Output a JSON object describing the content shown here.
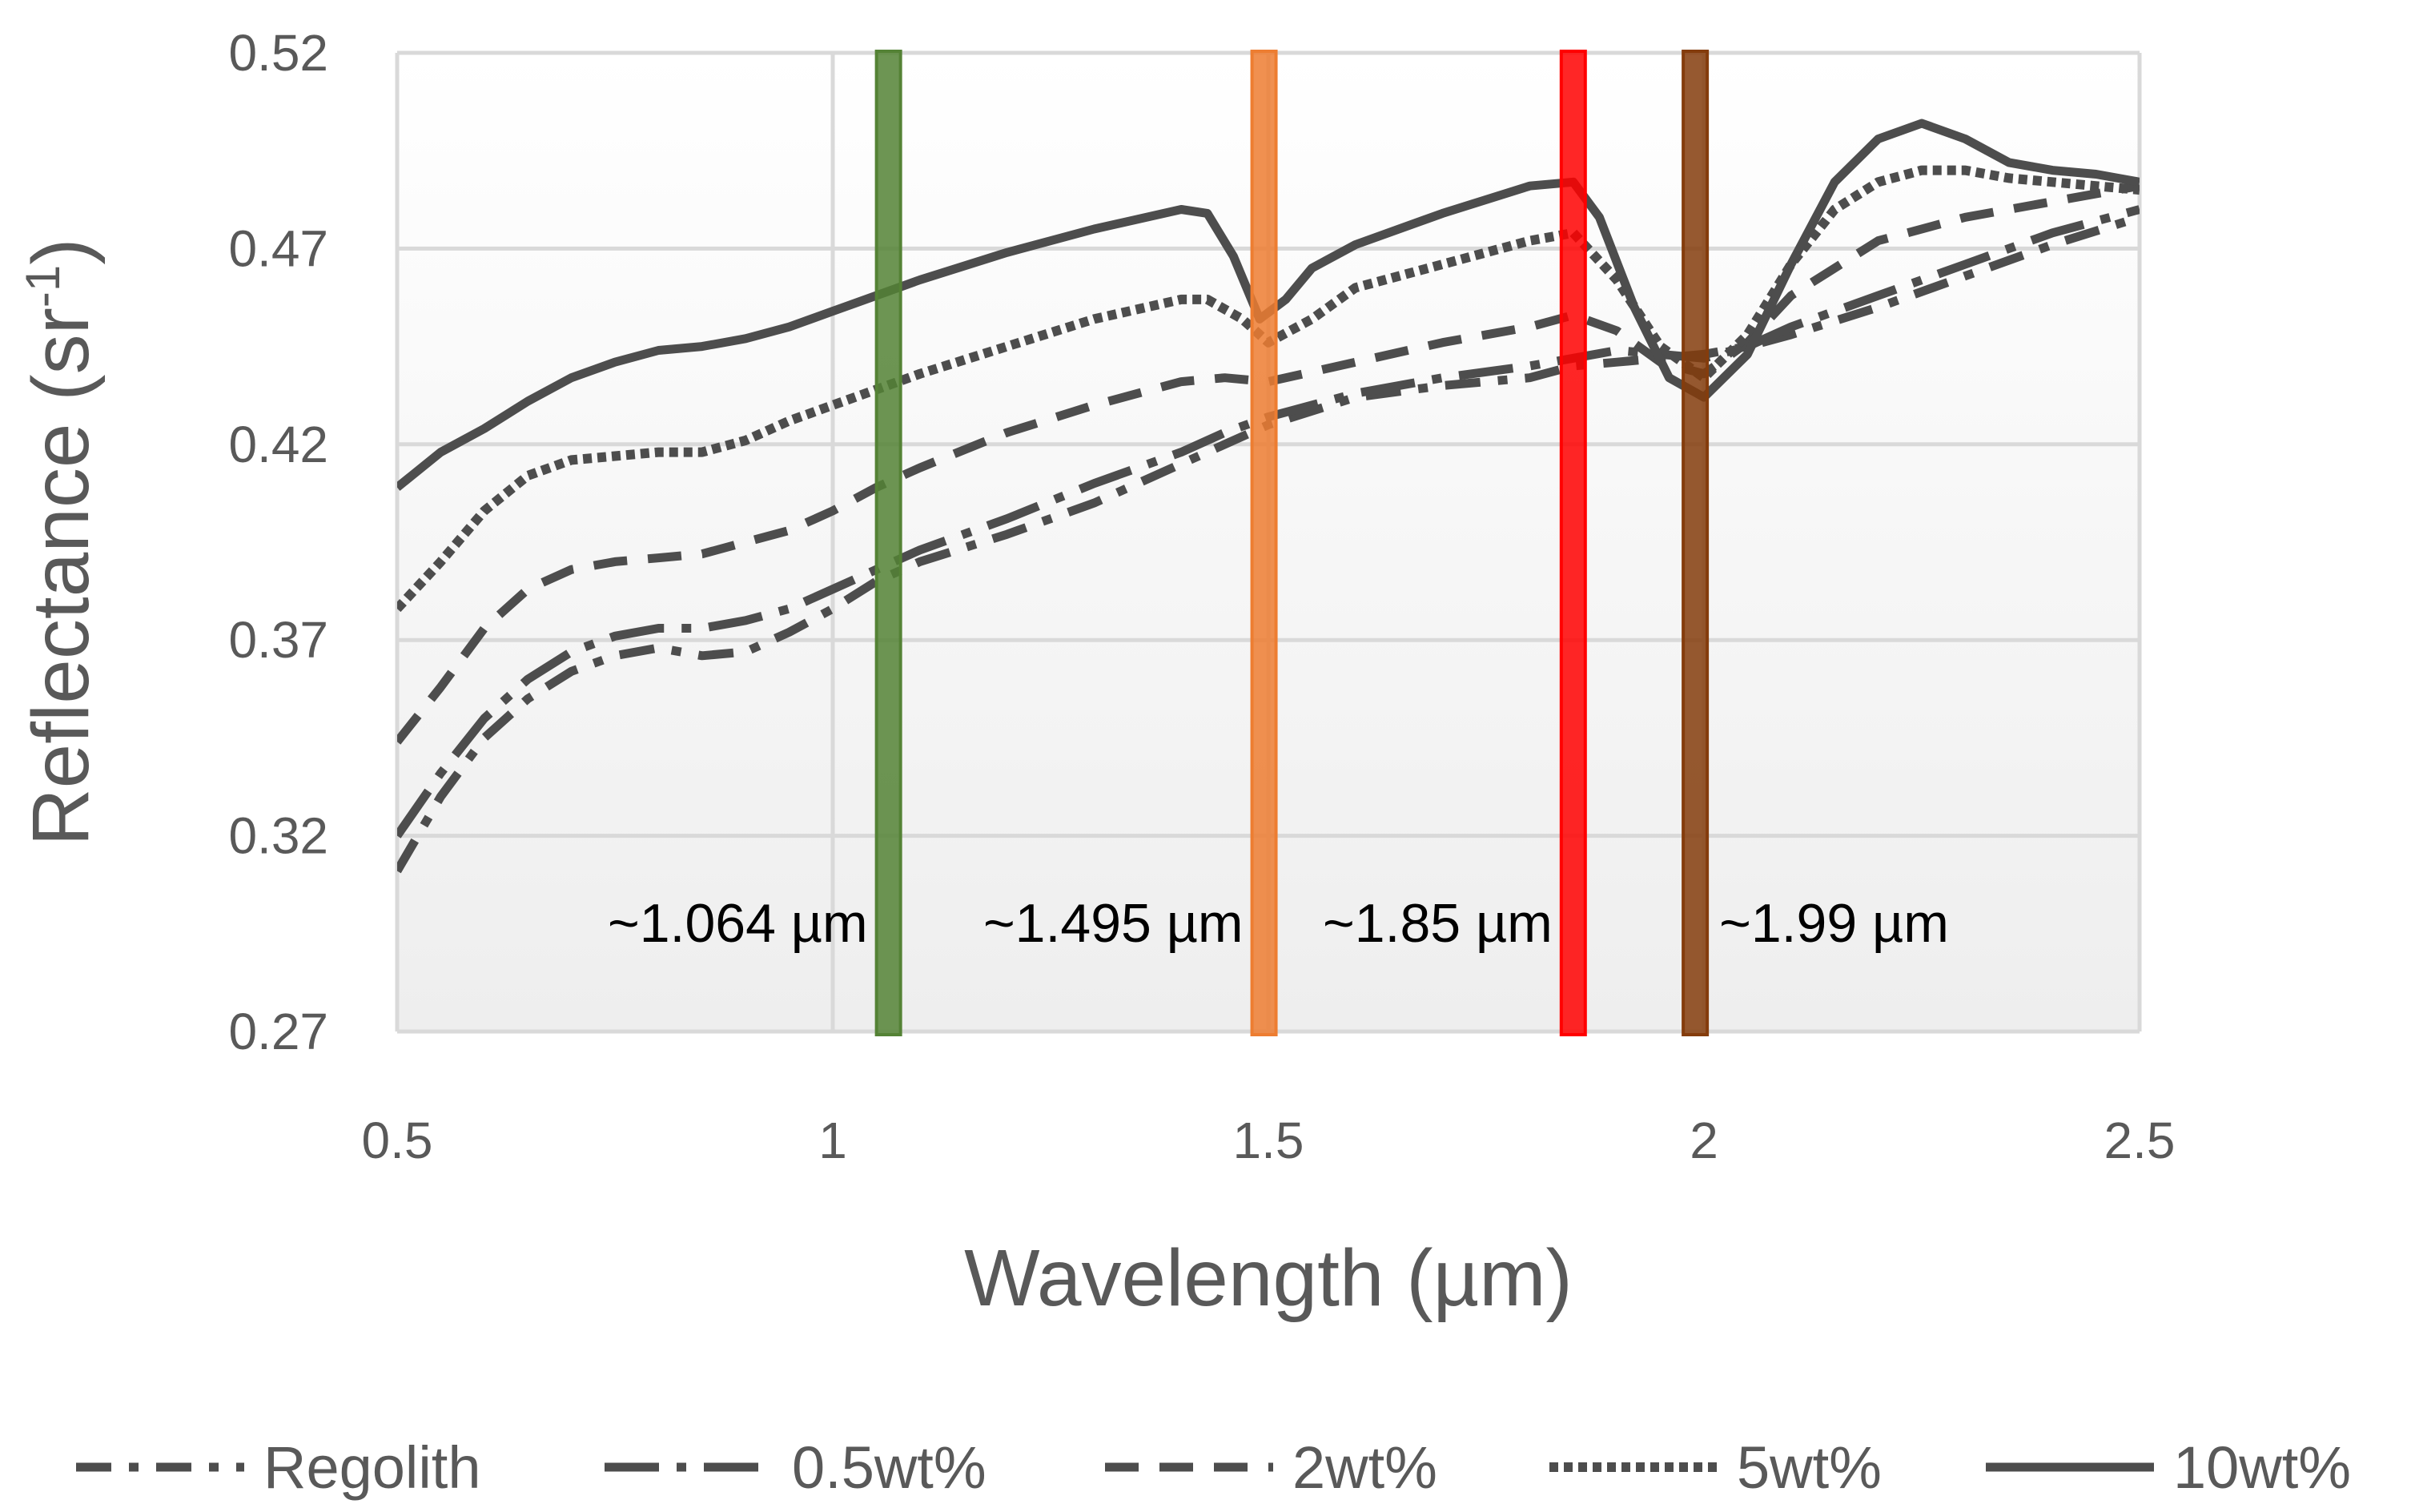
{
  "chart_data": {
    "type": "line",
    "title": "",
    "xlabel": "Wavelength (µm)",
    "ylabel_main": "Reflectance (sr",
    "ylabel_sup": "-1",
    "ylabel_close": ")",
    "xlim": [
      0.5,
      2.5
    ],
    "ylim": [
      0.27,
      0.52
    ],
    "xticks": [
      0.5,
      1,
      1.5,
      2,
      2.5
    ],
    "xtick_labels": [
      "0.5",
      "1",
      "1.5",
      "2",
      "2.5"
    ],
    "yticks": [
      0.27,
      0.32,
      0.37,
      0.42,
      0.47,
      0.52
    ],
    "ytick_labels": [
      "0.27",
      "0.32",
      "0.37",
      "0.42",
      "0.47",
      "0.52"
    ],
    "grid": true,
    "legend_position": "bottom",
    "line_color": "#4d4d4d",
    "bands": [
      {
        "x": 1.064,
        "label": "~1.064 µm",
        "color": "#548235",
        "text_side": "left"
      },
      {
        "x": 1.495,
        "label": "~1.495 µm",
        "color": "#ed7d31",
        "text_side": "left"
      },
      {
        "x": 1.85,
        "label": "~1.85 µm",
        "color": "#ff0000",
        "text_side": "left"
      },
      {
        "x": 1.99,
        "label": "~1.99 µm",
        "color": "#843c0c",
        "text_side": "right"
      }
    ],
    "series": [
      {
        "name": "Regolith",
        "dash": "dashdot",
        "x": [
          0.5,
          0.55,
          0.6,
          0.65,
          0.7,
          0.75,
          0.8,
          0.85,
          0.9,
          0.95,
          1.0,
          1.05,
          1.1,
          1.2,
          1.3,
          1.4,
          1.45,
          1.5,
          1.6,
          1.7,
          1.8,
          1.85,
          1.9,
          1.95,
          2.0,
          2.05,
          2.1,
          2.2,
          2.3,
          2.4,
          2.5
        ],
        "y": [
          0.311,
          0.33,
          0.345,
          0.355,
          0.362,
          0.366,
          0.368,
          0.366,
          0.367,
          0.372,
          0.378,
          0.385,
          0.39,
          0.397,
          0.405,
          0.415,
          0.42,
          0.425,
          0.432,
          0.435,
          0.437,
          0.44,
          0.441,
          0.442,
          0.443,
          0.445,
          0.448,
          0.455,
          0.463,
          0.471,
          0.478
        ]
      },
      {
        "name": "0.5wt%",
        "dash": "longdashdot",
        "x": [
          0.5,
          0.55,
          0.6,
          0.65,
          0.7,
          0.75,
          0.8,
          0.85,
          0.9,
          0.95,
          1.0,
          1.05,
          1.1,
          1.2,
          1.3,
          1.4,
          1.45,
          1.5,
          1.6,
          1.7,
          1.8,
          1.85,
          1.9,
          1.95,
          2.0,
          2.05,
          2.1,
          2.2,
          2.3,
          2.4,
          2.5
        ],
        "y": [
          0.32,
          0.336,
          0.35,
          0.36,
          0.367,
          0.371,
          0.373,
          0.373,
          0.375,
          0.378,
          0.383,
          0.388,
          0.393,
          0.401,
          0.41,
          0.418,
          0.423,
          0.427,
          0.433,
          0.437,
          0.44,
          0.442,
          0.444,
          0.443,
          0.442,
          0.445,
          0.45,
          0.458,
          0.466,
          0.474,
          0.48
        ]
      },
      {
        "name": "2wt%",
        "dash": "dash",
        "x": [
          0.5,
          0.55,
          0.6,
          0.65,
          0.7,
          0.75,
          0.8,
          0.85,
          0.9,
          0.95,
          1.0,
          1.05,
          1.1,
          1.2,
          1.3,
          1.4,
          1.45,
          1.5,
          1.6,
          1.7,
          1.8,
          1.85,
          1.9,
          1.95,
          2.0,
          2.05,
          2.1,
          2.2,
          2.3,
          2.4,
          2.5
        ],
        "y": [
          0.344,
          0.358,
          0.373,
          0.383,
          0.388,
          0.39,
          0.391,
          0.392,
          0.395,
          0.398,
          0.403,
          0.409,
          0.414,
          0.423,
          0.43,
          0.436,
          0.437,
          0.436,
          0.441,
          0.446,
          0.45,
          0.453,
          0.449,
          0.441,
          0.438,
          0.446,
          0.458,
          0.472,
          0.478,
          0.482,
          0.486
        ]
      },
      {
        "name": "5wt%",
        "dash": "dot",
        "x": [
          0.5,
          0.55,
          0.6,
          0.65,
          0.7,
          0.75,
          0.8,
          0.85,
          0.9,
          0.95,
          1.0,
          1.05,
          1.1,
          1.2,
          1.3,
          1.4,
          1.43,
          1.47,
          1.5,
          1.55,
          1.6,
          1.7,
          1.8,
          1.85,
          1.9,
          1.95,
          2.0,
          2.05,
          2.1,
          2.15,
          2.2,
          2.25,
          2.3,
          2.35,
          2.4,
          2.5
        ],
        "y": [
          0.378,
          0.39,
          0.403,
          0.412,
          0.416,
          0.417,
          0.418,
          0.418,
          0.421,
          0.426,
          0.43,
          0.434,
          0.438,
          0.445,
          0.452,
          0.457,
          0.457,
          0.452,
          0.446,
          0.452,
          0.46,
          0.466,
          0.472,
          0.474,
          0.462,
          0.445,
          0.437,
          0.448,
          0.466,
          0.48,
          0.487,
          0.49,
          0.49,
          0.488,
          0.487,
          0.485
        ]
      },
      {
        "name": "10wt%",
        "dash": "solid",
        "x": [
          0.5,
          0.55,
          0.6,
          0.65,
          0.7,
          0.75,
          0.8,
          0.85,
          0.9,
          0.95,
          1.0,
          1.05,
          1.1,
          1.2,
          1.3,
          1.4,
          1.43,
          1.46,
          1.49,
          1.52,
          1.55,
          1.6,
          1.7,
          1.8,
          1.85,
          1.88,
          1.92,
          1.96,
          2.0,
          2.05,
          2.1,
          2.15,
          2.2,
          2.25,
          2.3,
          2.35,
          2.4,
          2.45,
          2.5
        ],
        "y": [
          0.409,
          0.418,
          0.424,
          0.431,
          0.437,
          0.441,
          0.444,
          0.445,
          0.447,
          0.45,
          0.454,
          0.458,
          0.462,
          0.469,
          0.475,
          0.48,
          0.479,
          0.468,
          0.452,
          0.457,
          0.465,
          0.471,
          0.479,
          0.486,
          0.487,
          0.478,
          0.455,
          0.437,
          0.432,
          0.443,
          0.466,
          0.487,
          0.498,
          0.502,
          0.498,
          0.492,
          0.49,
          0.489,
          0.487
        ]
      }
    ]
  }
}
